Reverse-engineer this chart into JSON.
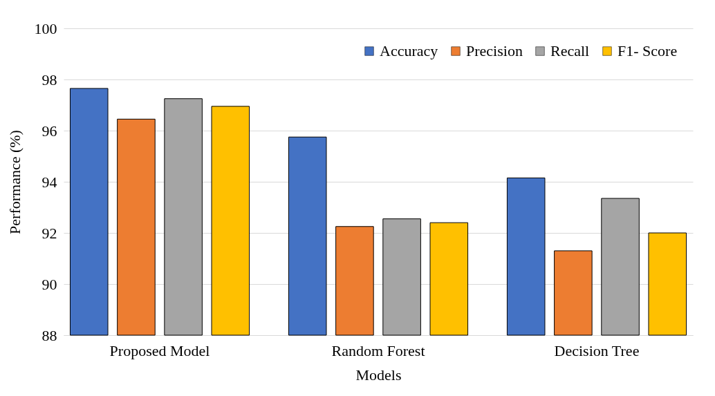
{
  "chart_data": {
    "type": "bar",
    "xlabel": "Models",
    "ylabel": "Performance (%)",
    "categories": [
      "Proposed Model",
      "Random Forest",
      "Decision Tree"
    ],
    "series": [
      {
        "name": "Accuracy",
        "color": "#4472c4",
        "values": [
          97.65,
          95.75,
          94.15
        ]
      },
      {
        "name": "Precision",
        "color": "#ed7d31",
        "values": [
          96.45,
          92.25,
          91.3
        ]
      },
      {
        "name": "Recall",
        "color": "#a5a5a5",
        "values": [
          97.25,
          92.55,
          93.35
        ]
      },
      {
        "name": "F1- Score",
        "color": "#ffc000",
        "values": [
          96.95,
          92.4,
          92.0
        ]
      }
    ],
    "ylim": [
      88,
      100
    ],
    "yticks": [
      88,
      90,
      92,
      94,
      96,
      98,
      100
    ],
    "grid": "y",
    "legend": "top right"
  }
}
